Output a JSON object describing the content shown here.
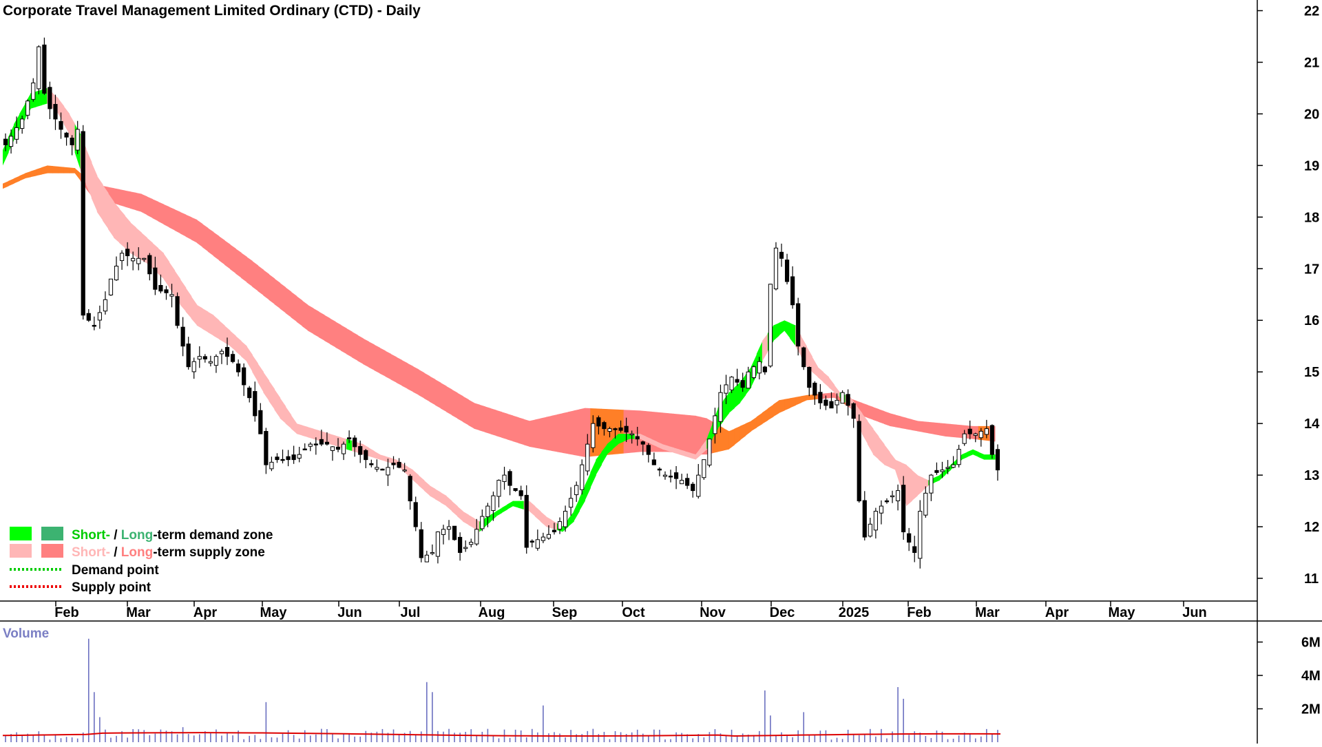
{
  "chart_data": {
    "type": "candlestick",
    "title": "Corporate Travel Management Limited Ordinary (CTD) - Daily",
    "x_tick_labels": [
      "Feb",
      "Mar",
      "Apr",
      "May",
      "Jun",
      "Jul",
      "Aug",
      "Sep",
      "Oct",
      "Nov",
      "Dec",
      "2025",
      "Feb",
      "Mar",
      "Apr",
      "May",
      "Jun"
    ],
    "y_tick_labels": [
      "11",
      "12",
      "13",
      "14",
      "15",
      "16",
      "17",
      "18",
      "19",
      "20",
      "21",
      "22"
    ],
    "ylim": [
      10.6,
      22.1
    ],
    "price_path": [
      [
        0,
        19.4
      ],
      [
        3,
        19.9
      ],
      [
        5,
        20.6
      ],
      [
        6,
        21.3
      ],
      [
        7,
        20.4
      ],
      [
        8,
        20.1
      ],
      [
        10,
        19.7
      ],
      [
        12,
        19.4
      ],
      [
        13,
        19.7
      ],
      [
        14,
        16.1
      ],
      [
        16,
        15.9
      ],
      [
        18,
        16.4
      ],
      [
        19,
        16.8
      ],
      [
        21,
        17.3
      ],
      [
        23,
        17.2
      ],
      [
        25,
        17.2
      ],
      [
        27,
        16.6
      ],
      [
        30,
        16.5
      ],
      [
        31,
        15.9
      ],
      [
        33,
        15.1
      ],
      [
        35,
        15.3
      ],
      [
        37,
        15.2
      ],
      [
        39,
        15.4
      ],
      [
        41,
        15.2
      ],
      [
        42,
        15.0
      ],
      [
        44,
        14.5
      ],
      [
        46,
        13.8
      ],
      [
        47,
        13.2
      ],
      [
        49,
        13.3
      ],
      [
        52,
        13.3
      ],
      [
        55,
        13.6
      ],
      [
        58,
        13.6
      ],
      [
        60,
        13.5
      ],
      [
        62,
        13.7
      ],
      [
        64,
        13.4
      ],
      [
        66,
        13.2
      ],
      [
        68,
        13.1
      ],
      [
        70,
        13.2
      ],
      [
        72,
        13.1
      ],
      [
        73,
        12.5
      ],
      [
        74,
        12.0
      ],
      [
        75,
        11.4
      ],
      [
        77,
        11.5
      ],
      [
        78,
        11.9
      ],
      [
        80,
        12.0
      ],
      [
        82,
        11.5
      ],
      [
        84,
        11.7
      ],
      [
        86,
        12.2
      ],
      [
        88,
        12.6
      ],
      [
        89,
        12.9
      ],
      [
        90,
        13.0
      ],
      [
        91,
        12.8
      ],
      [
        93,
        12.6
      ],
      [
        94,
        11.6
      ],
      [
        95,
        11.7
      ],
      [
        97,
        11.8
      ],
      [
        99,
        11.9
      ],
      [
        101,
        12.3
      ],
      [
        103,
        12.8
      ],
      [
        105,
        13.6
      ],
      [
        106,
        14.0
      ],
      [
        108,
        13.9
      ],
      [
        110,
        13.9
      ],
      [
        113,
        13.8
      ],
      [
        115,
        13.6
      ],
      [
        117,
        13.2
      ],
      [
        119,
        13.0
      ],
      [
        122,
        12.9
      ],
      [
        124,
        12.7
      ],
      [
        126,
        13.3
      ],
      [
        127,
        13.7
      ],
      [
        129,
        14.6
      ],
      [
        131,
        14.9
      ],
      [
        133,
        14.7
      ],
      [
        134,
        15.0
      ],
      [
        136,
        15.2
      ],
      [
        137,
        15.0
      ],
      [
        138,
        16.7
      ],
      [
        139,
        17.4
      ],
      [
        140,
        17.2
      ],
      [
        142,
        16.3
      ],
      [
        143,
        15.5
      ],
      [
        145,
        14.7
      ],
      [
        147,
        14.4
      ],
      [
        149,
        14.3
      ],
      [
        151,
        14.6
      ],
      [
        153,
        14.1
      ],
      [
        154,
        12.5
      ],
      [
        155,
        11.8
      ],
      [
        157,
        12.3
      ],
      [
        159,
        12.5
      ],
      [
        161,
        12.7
      ],
      [
        162,
        11.9
      ],
      [
        164,
        11.5
      ],
      [
        165,
        12.3
      ],
      [
        167,
        13.0
      ],
      [
        169,
        13.1
      ],
      [
        171,
        13.2
      ],
      [
        173,
        13.8
      ],
      [
        175,
        13.8
      ],
      [
        177,
        13.9
      ],
      [
        178,
        13.4
      ],
      [
        179,
        13.1
      ]
    ],
    "series": [
      {
        "name": "Short- / Long-term demand zone",
        "colors": [
          "#00ff00",
          "#3cb371"
        ]
      },
      {
        "name": "Short- / Long-term supply zone",
        "colors": [
          "#ffb6b6",
          "#ff8080"
        ]
      },
      {
        "name": "Demand point",
        "color": "#00cc00"
      },
      {
        "name": "Supply point",
        "color": "#ee0000"
      }
    ],
    "short_term_zone": [
      [
        0,
        19.0,
        19.3
      ],
      [
        2,
        19.5,
        19.8
      ],
      [
        5,
        20.1,
        20.4
      ],
      [
        8,
        20.2,
        20.5
      ],
      [
        10,
        20.0,
        20.3
      ],
      [
        12,
        19.6,
        20.0
      ],
      [
        14,
        18.9,
        19.6
      ],
      [
        17,
        18.1,
        18.8
      ],
      [
        20,
        17.6,
        18.3
      ],
      [
        23,
        17.3,
        17.9
      ],
      [
        26,
        17.1,
        17.6
      ],
      [
        29,
        16.8,
        17.3
      ],
      [
        32,
        16.3,
        16.8
      ],
      [
        35,
        15.9,
        16.3
      ],
      [
        38,
        15.7,
        16.1
      ],
      [
        41,
        15.5,
        15.8
      ],
      [
        44,
        15.2,
        15.5
      ],
      [
        47,
        14.6,
        15.0
      ],
      [
        50,
        14.1,
        14.5
      ],
      [
        53,
        13.8,
        14.0
      ],
      [
        56,
        13.7,
        13.9
      ],
      [
        59,
        13.6,
        13.8
      ],
      [
        62,
        13.5,
        13.7
      ],
      [
        65,
        13.4,
        13.6
      ],
      [
        68,
        13.3,
        13.4
      ],
      [
        71,
        13.2,
        13.3
      ],
      [
        74,
        12.9,
        13.1
      ],
      [
        77,
        12.6,
        12.8
      ],
      [
        80,
        12.4,
        12.6
      ],
      [
        83,
        12.1,
        12.3
      ],
      [
        86,
        11.9,
        12.1
      ],
      [
        89,
        12.2,
        12.3
      ],
      [
        92,
        12.4,
        12.5
      ],
      [
        95,
        12.3,
        12.5
      ],
      [
        98,
        12.0,
        12.2
      ],
      [
        101,
        11.9,
        12.0
      ],
      [
        103,
        12.1,
        12.3
      ],
      [
        105,
        12.5,
        12.8
      ],
      [
        107,
        13.0,
        13.3
      ],
      [
        109,
        13.4,
        13.6
      ],
      [
        111,
        13.6,
        13.8
      ],
      [
        113,
        13.7,
        13.8
      ],
      [
        115,
        13.7,
        13.8
      ],
      [
        117,
        13.6,
        13.7
      ],
      [
        119,
        13.5,
        13.6
      ],
      [
        122,
        13.4,
        13.5
      ],
      [
        125,
        13.3,
        13.4
      ],
      [
        127,
        13.5,
        13.7
      ],
      [
        129,
        13.9,
        14.3
      ],
      [
        131,
        14.2,
        14.6
      ],
      [
        133,
        14.4,
        14.8
      ],
      [
        135,
        14.7,
        15.1
      ],
      [
        137,
        15.2,
        15.6
      ],
      [
        139,
        15.6,
        15.9
      ],
      [
        141,
        15.8,
        16.0
      ],
      [
        143,
        15.5,
        15.9
      ],
      [
        145,
        15.1,
        15.5
      ],
      [
        147,
        14.9,
        15.1
      ],
      [
        149,
        14.7,
        14.9
      ],
      [
        151,
        14.5,
        14.6
      ],
      [
        153,
        14.3,
        14.5
      ],
      [
        155,
        13.8,
        14.2
      ],
      [
        157,
        13.4,
        13.9
      ],
      [
        159,
        13.2,
        13.6
      ],
      [
        161,
        13.1,
        13.3
      ],
      [
        163,
        12.4,
        13.2
      ],
      [
        165,
        12.6,
        13.0
      ],
      [
        167,
        12.8,
        12.9
      ],
      [
        169,
        12.9,
        13.0
      ],
      [
        171,
        13.1,
        13.2
      ],
      [
        173,
        13.3,
        13.4
      ],
      [
        175,
        13.4,
        13.5
      ],
      [
        177,
        13.3,
        13.4
      ],
      [
        179,
        13.3,
        13.4
      ]
    ],
    "long_term_zone": [
      [
        0,
        18.55,
        18.65
      ],
      [
        4,
        18.75,
        18.85
      ],
      [
        8,
        18.85,
        19.0
      ],
      [
        13,
        18.85,
        18.95
      ],
      [
        16,
        18.4,
        18.65
      ],
      [
        25,
        18.1,
        18.45
      ],
      [
        35,
        17.5,
        17.95
      ],
      [
        45,
        16.65,
        17.15
      ],
      [
        55,
        15.8,
        16.3
      ],
      [
        65,
        15.15,
        15.65
      ],
      [
        75,
        14.55,
        15.05
      ],
      [
        85,
        13.9,
        14.4
      ],
      [
        95,
        13.55,
        14.05
      ],
      [
        105,
        13.35,
        14.3
      ],
      [
        115,
        13.45,
        14.25
      ],
      [
        120,
        13.45,
        14.2
      ],
      [
        125,
        13.4,
        14.15
      ],
      [
        127,
        13.4,
        14.1
      ],
      [
        131,
        13.5,
        13.85
      ],
      [
        135,
        13.85,
        14.05
      ],
      [
        140,
        14.2,
        14.45
      ],
      [
        145,
        14.45,
        14.55
      ],
      [
        150,
        14.5,
        14.6
      ],
      [
        155,
        14.15,
        14.4
      ],
      [
        160,
        13.95,
        14.2
      ],
      [
        165,
        13.85,
        14.05
      ],
      [
        170,
        13.75,
        14.0
      ],
      [
        175,
        13.7,
        13.95
      ],
      [
        179,
        13.65,
        13.95
      ]
    ],
    "volume": {
      "title": "Volume",
      "y_tick_labels": [
        "2M",
        "4M",
        "6M"
      ],
      "ylim": [
        0,
        6.6
      ],
      "spikes": [
        [
          15,
          6.2
        ],
        [
          16,
          3.0
        ],
        [
          17,
          1.5
        ],
        [
          32,
          0.9
        ],
        [
          47,
          2.4
        ],
        [
          57,
          0.8
        ],
        [
          76,
          3.6
        ],
        [
          77,
          3.0
        ],
        [
          97,
          2.2
        ],
        [
          106,
          0.8
        ],
        [
          137,
          3.1
        ],
        [
          138,
          1.6
        ],
        [
          144,
          1.8
        ],
        [
          161,
          3.3
        ],
        [
          162,
          2.6
        ]
      ],
      "average_color": "#dd0000"
    }
  }
}
